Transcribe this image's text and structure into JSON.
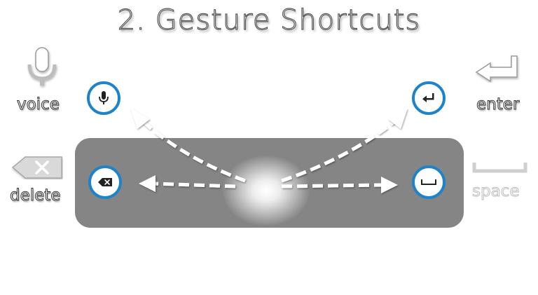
{
  "title": "2. Gesture Shortcuts",
  "labels": {
    "voice": "voice",
    "enter": "enter",
    "delete": "delete",
    "space": "space"
  },
  "icons": {
    "voice": "microphone-icon",
    "enter": "enter-arrow-icon",
    "delete": "backspace-icon",
    "space": "space-bar-icon"
  },
  "colors": {
    "accent": "#1f83c9",
    "panel": "#858585",
    "arrow": "#ffffff"
  }
}
